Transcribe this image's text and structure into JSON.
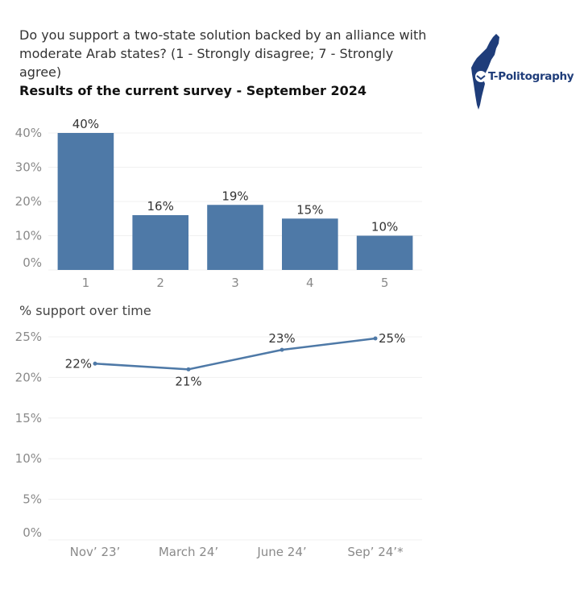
{
  "header": {
    "title": "Do you support a two-state solution backed by an alliance with moderate Arab states? (1 - Strongly disagree; 7 - Strongly agree)",
    "subtitle": "Results of the current survey - September 2024"
  },
  "logo": {
    "text": "T-Politography",
    "icon": "israel-map-logo-icon"
  },
  "colors": {
    "bar": "#4e79a7",
    "line": "#4e79a7",
    "grid": "#f0f0f0"
  },
  "chart_data": [
    {
      "type": "bar",
      "title": "",
      "categories": [
        "1",
        "2",
        "3",
        "4",
        "5"
      ],
      "values": [
        40,
        16,
        19,
        15,
        10
      ],
      "value_labels": [
        "40%",
        "16%",
        "19%",
        "15%",
        "10%"
      ],
      "yticks": [
        "0%",
        "10%",
        "20%",
        "30%",
        "40%"
      ],
      "ytick_values": [
        0,
        10,
        20,
        30,
        40
      ],
      "ylim": [
        0,
        40
      ],
      "grid": true
    },
    {
      "type": "line",
      "title": "% support over time",
      "categories": [
        "Nov’ 23’",
        "March 24’",
        "June 24’",
        "Sep’ 24’*"
      ],
      "values": [
        21.7,
        21.0,
        23.4,
        24.8
      ],
      "value_labels": [
        "22%",
        "21%",
        "23%",
        "25%"
      ],
      "yticks": [
        "0%",
        "5%",
        "10%",
        "15%",
        "20%",
        "25%"
      ],
      "ytick_values": [
        0,
        5,
        10,
        15,
        20,
        25
      ],
      "ylim": [
        0,
        25
      ],
      "grid": true
    }
  ]
}
